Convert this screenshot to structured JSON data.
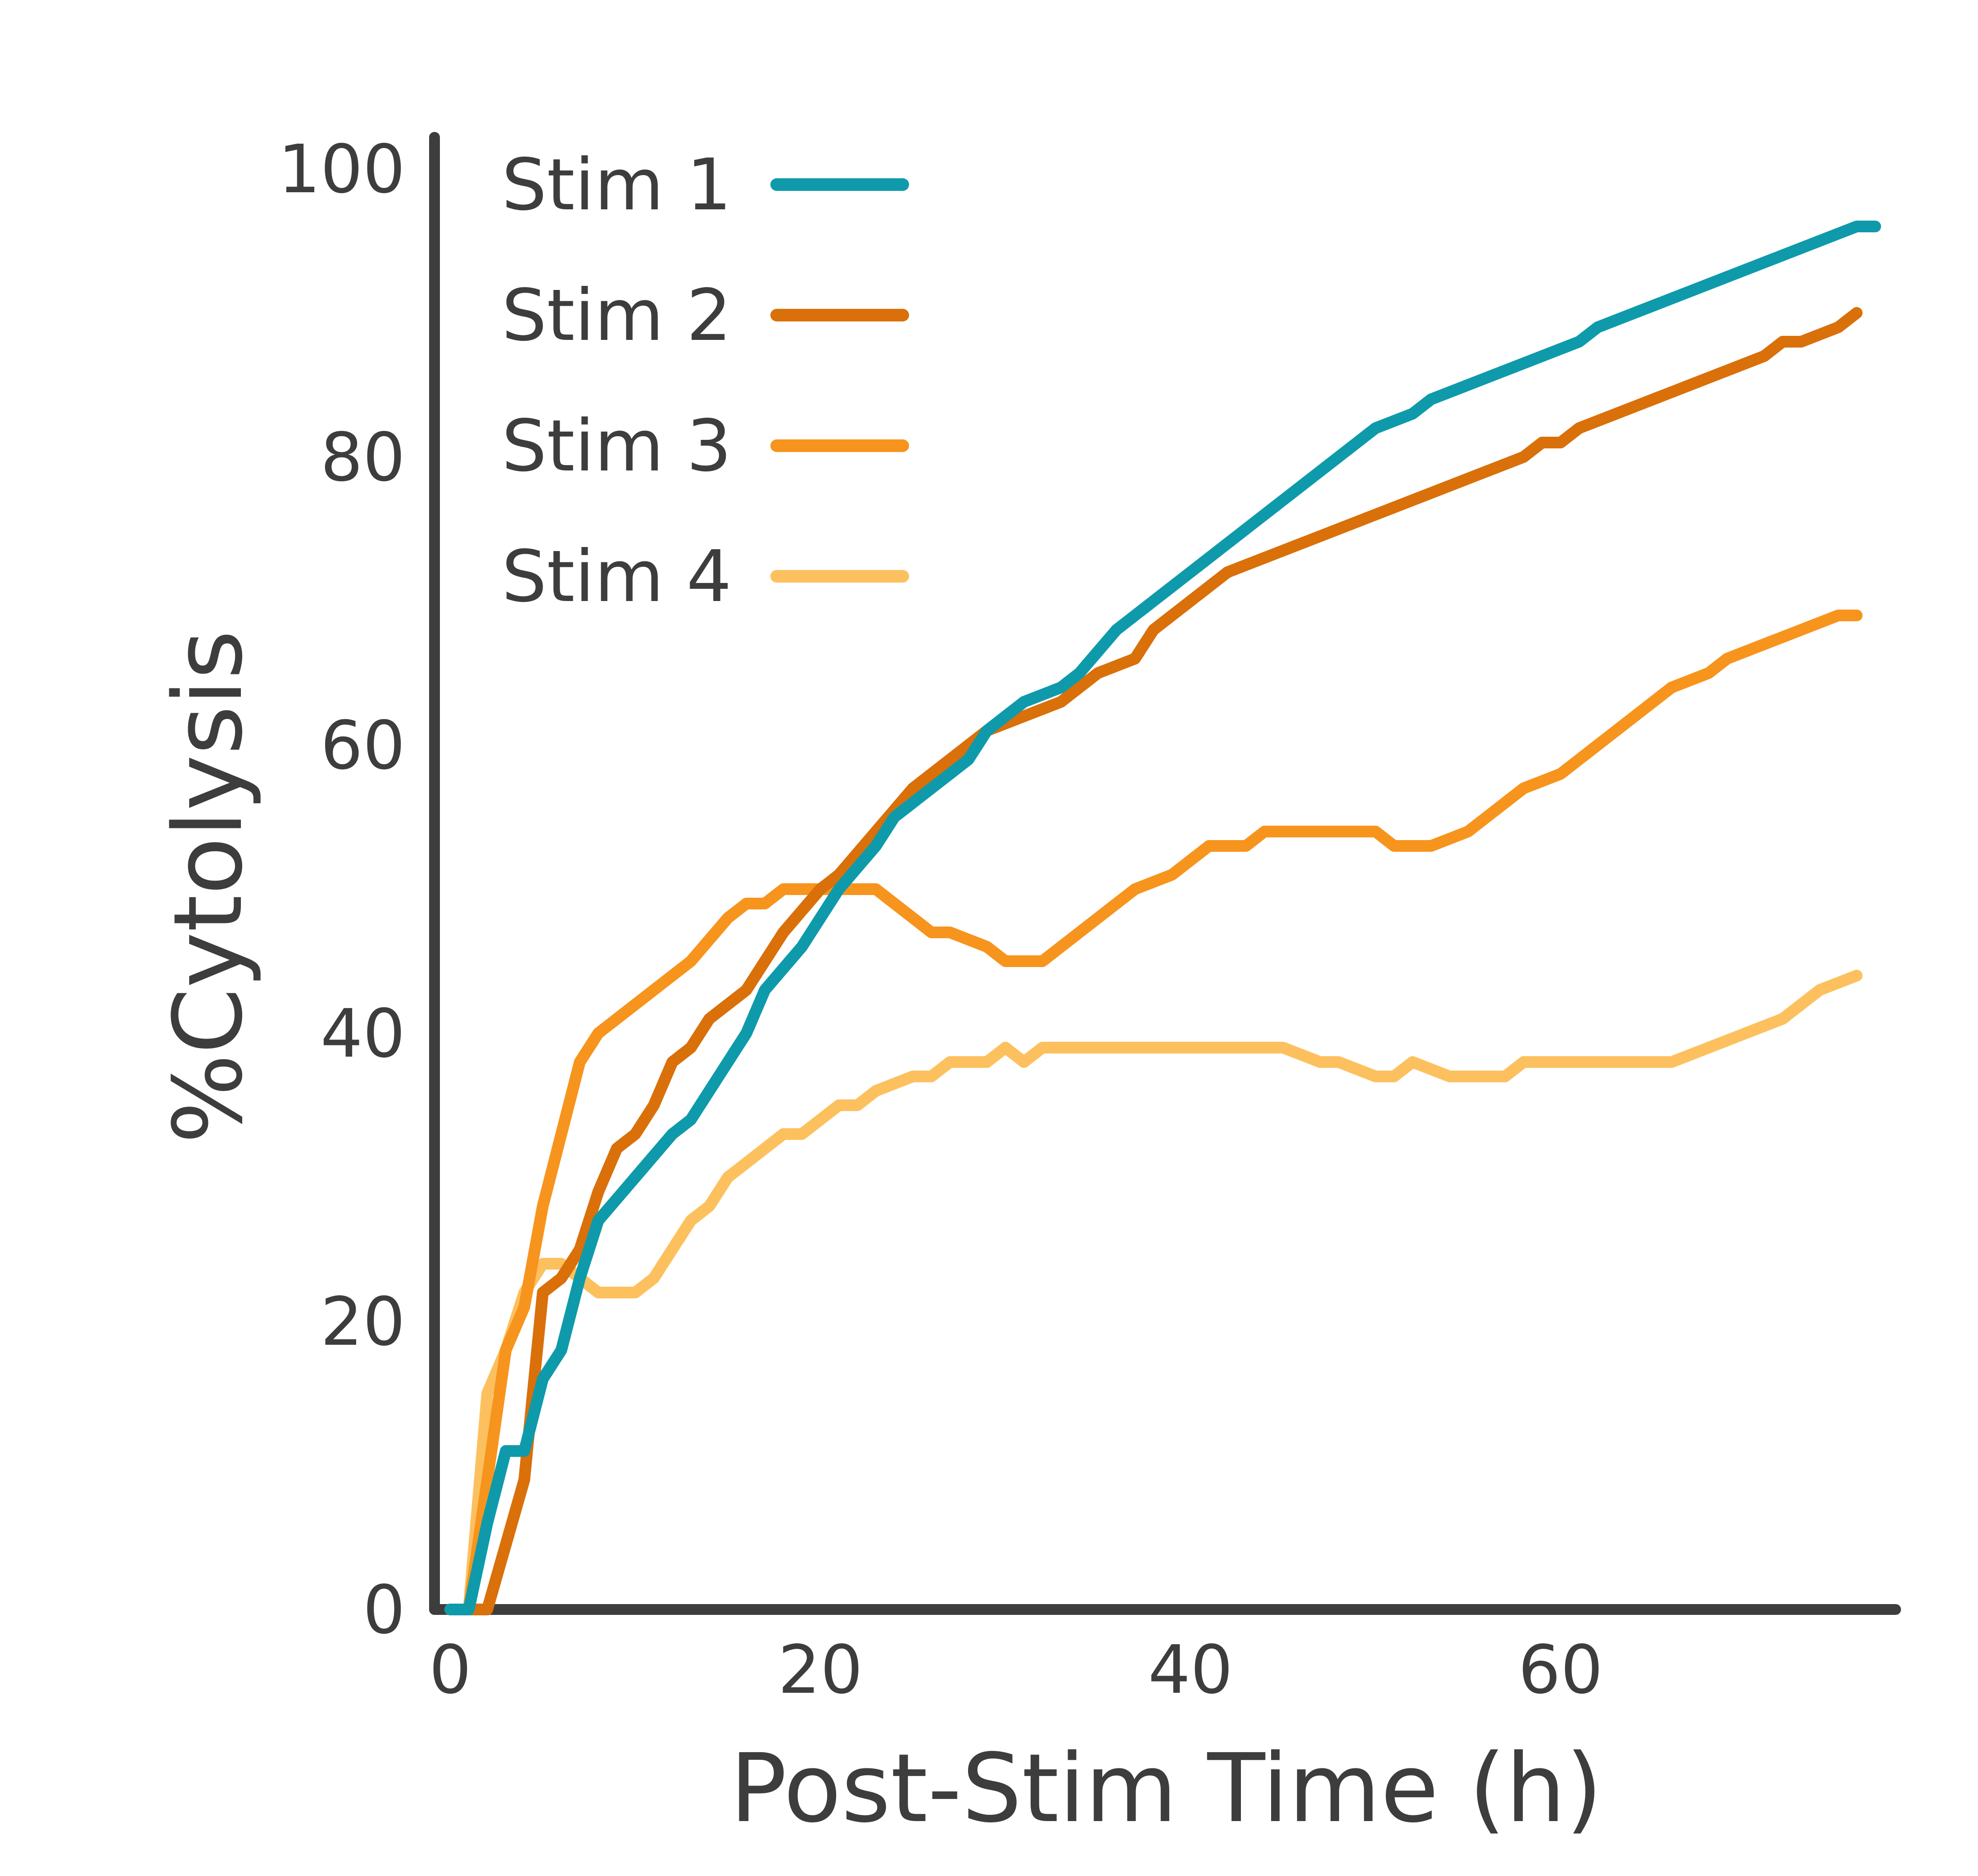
{
  "chart_data": {
    "type": "line",
    "xlabel": "Post-Stim Time (h)",
    "ylabel": "%Cytolysis",
    "xlim": [
      -1,
      80
    ],
    "ylim": [
      0,
      100
    ],
    "xticks": [
      0,
      20,
      40,
      60
    ],
    "yticks": [
      0,
      20,
      40,
      60,
      80,
      100
    ],
    "grid": false,
    "legend_position": "top-left",
    "series": [
      {
        "name": "Stim 1",
        "color": "#0e9aab",
        "points": [
          [
            0,
            0
          ],
          [
            1,
            0
          ],
          [
            2,
            6
          ],
          [
            3,
            11
          ],
          [
            4,
            11
          ],
          [
            5,
            16
          ],
          [
            6,
            18
          ],
          [
            7,
            23
          ],
          [
            8,
            27
          ],
          [
            10,
            30
          ],
          [
            12,
            33
          ],
          [
            13,
            34
          ],
          [
            14,
            36
          ],
          [
            16,
            40
          ],
          [
            17,
            43
          ],
          [
            19,
            46
          ],
          [
            21,
            50
          ],
          [
            23,
            53
          ],
          [
            24,
            55
          ],
          [
            26,
            57
          ],
          [
            27,
            58
          ],
          [
            28,
            59
          ],
          [
            29,
            61
          ],
          [
            30,
            62
          ],
          [
            31,
            63
          ],
          [
            33,
            64
          ],
          [
            34,
            65
          ],
          [
            36,
            68
          ],
          [
            38,
            70
          ],
          [
            40,
            72
          ],
          [
            42,
            74
          ],
          [
            43,
            75
          ],
          [
            45,
            77
          ],
          [
            46,
            78
          ],
          [
            47,
            79
          ],
          [
            49,
            81
          ],
          [
            50,
            82
          ],
          [
            52,
            83
          ],
          [
            53,
            84
          ],
          [
            55,
            85
          ],
          [
            57,
            86
          ],
          [
            59,
            87
          ],
          [
            61,
            88
          ],
          [
            62,
            89
          ],
          [
            64,
            90
          ],
          [
            66,
            91
          ],
          [
            68,
            92
          ],
          [
            70,
            93
          ],
          [
            72,
            94
          ],
          [
            74,
            95
          ],
          [
            76,
            96
          ],
          [
            77,
            96
          ]
        ]
      },
      {
        "name": "Stim 2",
        "color": "#d9700a",
        "points": [
          [
            0,
            0
          ],
          [
            2,
            0
          ],
          [
            4,
            9
          ],
          [
            5,
            22
          ],
          [
            6,
            23
          ],
          [
            7,
            25
          ],
          [
            8,
            29
          ],
          [
            9,
            32
          ],
          [
            10,
            33
          ],
          [
            11,
            35
          ],
          [
            12,
            38
          ],
          [
            13,
            39
          ],
          [
            14,
            41
          ],
          [
            15,
            42
          ],
          [
            16,
            43
          ],
          [
            17,
            45
          ],
          [
            18,
            47
          ],
          [
            20,
            50
          ],
          [
            21,
            51
          ],
          [
            23,
            54
          ],
          [
            25,
            57
          ],
          [
            27,
            59
          ],
          [
            29,
            61
          ],
          [
            31,
            62
          ],
          [
            33,
            63
          ],
          [
            35,
            65
          ],
          [
            37,
            66
          ],
          [
            38,
            68
          ],
          [
            39,
            69
          ],
          [
            40,
            70
          ],
          [
            41,
            71
          ],
          [
            42,
            72
          ],
          [
            44,
            73
          ],
          [
            46,
            74
          ],
          [
            48,
            75
          ],
          [
            50,
            76
          ],
          [
            52,
            77
          ],
          [
            54,
            78
          ],
          [
            56,
            79
          ],
          [
            58,
            80
          ],
          [
            59,
            81
          ],
          [
            60,
            81
          ],
          [
            61,
            82
          ],
          [
            63,
            83
          ],
          [
            65,
            84
          ],
          [
            67,
            85
          ],
          [
            69,
            86
          ],
          [
            71,
            87
          ],
          [
            72,
            88
          ],
          [
            73,
            88
          ],
          [
            75,
            89
          ],
          [
            76,
            90
          ]
        ]
      },
      {
        "name": "Stim 3",
        "color": "#f7941d",
        "points": [
          [
            0,
            0
          ],
          [
            1,
            0
          ],
          [
            3,
            18
          ],
          [
            4,
            21
          ],
          [
            5,
            28
          ],
          [
            6,
            33
          ],
          [
            7,
            38
          ],
          [
            8,
            40
          ],
          [
            9,
            41
          ],
          [
            10,
            42
          ],
          [
            12,
            44
          ],
          [
            13,
            45
          ],
          [
            15,
            48
          ],
          [
            16,
            49
          ],
          [
            17,
            49
          ],
          [
            18,
            50
          ],
          [
            19,
            50
          ],
          [
            20,
            50
          ],
          [
            22,
            50
          ],
          [
            23,
            50
          ],
          [
            24,
            49
          ],
          [
            25,
            48
          ],
          [
            26,
            47
          ],
          [
            27,
            47
          ],
          [
            29,
            46
          ],
          [
            30,
            45
          ],
          [
            31,
            45
          ],
          [
            32,
            45
          ],
          [
            33,
            46
          ],
          [
            34,
            47
          ],
          [
            35,
            48
          ],
          [
            36,
            49
          ],
          [
            37,
            50
          ],
          [
            39,
            51
          ],
          [
            40,
            52
          ],
          [
            41,
            53
          ],
          [
            43,
            53
          ],
          [
            44,
            54
          ],
          [
            45,
            54
          ],
          [
            47,
            54
          ],
          [
            48,
            54
          ],
          [
            50,
            54
          ],
          [
            51,
            53
          ],
          [
            52,
            53
          ],
          [
            53,
            53
          ],
          [
            55,
            54
          ],
          [
            56,
            55
          ],
          [
            57,
            56
          ],
          [
            58,
            57
          ],
          [
            60,
            58
          ],
          [
            61,
            59
          ],
          [
            62,
            60
          ],
          [
            64,
            62
          ],
          [
            66,
            64
          ],
          [
            68,
            65
          ],
          [
            69,
            66
          ],
          [
            71,
            67
          ],
          [
            73,
            68
          ],
          [
            75,
            69
          ],
          [
            76,
            69
          ]
        ]
      },
      {
        "name": "Stim 4",
        "color": "#fcc15e",
        "points": [
          [
            0,
            0
          ],
          [
            1,
            0
          ],
          [
            2,
            15
          ],
          [
            3,
            18
          ],
          [
            4,
            22
          ],
          [
            5,
            24
          ],
          [
            6,
            24
          ],
          [
            7,
            23
          ],
          [
            8,
            22
          ],
          [
            9,
            22
          ],
          [
            10,
            22
          ],
          [
            11,
            23
          ],
          [
            12,
            25
          ],
          [
            13,
            27
          ],
          [
            14,
            28
          ],
          [
            15,
            30
          ],
          [
            16,
            31
          ],
          [
            17,
            32
          ],
          [
            18,
            33
          ],
          [
            19,
            33
          ],
          [
            20,
            34
          ],
          [
            21,
            35
          ],
          [
            22,
            35
          ],
          [
            23,
            36
          ],
          [
            25,
            37
          ],
          [
            26,
            37
          ],
          [
            27,
            38
          ],
          [
            28,
            38
          ],
          [
            29,
            38
          ],
          [
            30,
            39
          ],
          [
            31,
            38
          ],
          [
            32,
            39
          ],
          [
            33,
            39
          ],
          [
            34,
            39
          ],
          [
            35,
            39
          ],
          [
            36,
            39
          ],
          [
            37,
            39
          ],
          [
            38,
            39
          ],
          [
            39,
            39
          ],
          [
            40,
            39
          ],
          [
            41,
            39
          ],
          [
            43,
            39
          ],
          [
            45,
            39
          ],
          [
            47,
            38
          ],
          [
            48,
            38
          ],
          [
            50,
            37
          ],
          [
            51,
            37
          ],
          [
            52,
            38
          ],
          [
            54,
            37
          ],
          [
            55,
            37
          ],
          [
            57,
            37
          ],
          [
            58,
            38
          ],
          [
            59,
            38
          ],
          [
            61,
            38
          ],
          [
            62,
            38
          ],
          [
            64,
            38
          ],
          [
            66,
            38
          ],
          [
            68,
            39
          ],
          [
            70,
            40
          ],
          [
            72,
            41
          ],
          [
            74,
            43
          ],
          [
            76,
            44
          ]
        ]
      }
    ]
  }
}
